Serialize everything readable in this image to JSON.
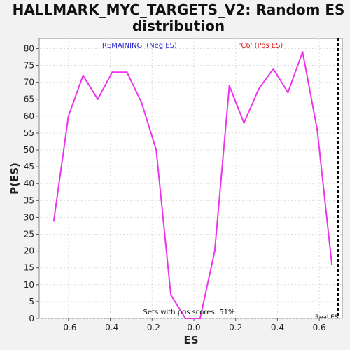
{
  "chart_data": {
    "type": "line",
    "title_line1": "HALLMARK_MYC_TARGETS_V2: Random ES",
    "title_line2": "distribution",
    "xlabel": "ES",
    "ylabel": "P(ES)",
    "xlim": [
      -0.74,
      0.71
    ],
    "ylim": [
      0,
      83
    ],
    "x_ticks": [
      -0.6,
      -0.4,
      -0.2,
      0.0,
      0.2,
      0.4,
      0.6
    ],
    "x_tick_labels": [
      "-0.6",
      "-0.4",
      "-0.2",
      "0.0",
      "0.2",
      "0.4",
      "0.6"
    ],
    "y_ticks": [
      0,
      5,
      10,
      15,
      20,
      25,
      30,
      35,
      40,
      45,
      50,
      55,
      60,
      65,
      70,
      75,
      80
    ],
    "y_tick_labels": [
      "0",
      "5",
      "10",
      "15",
      "20",
      "25",
      "30",
      "35",
      "40",
      "45",
      "50",
      "55",
      "60",
      "65",
      "70",
      "75",
      "80"
    ],
    "grid": true,
    "series": [
      {
        "color": "#ee33ee",
        "x": [
          -0.67,
          -0.6,
          -0.53,
          -0.46,
          -0.39,
          -0.32,
          -0.25,
          -0.18,
          -0.11,
          -0.04,
          0.03,
          0.1,
          0.17,
          0.24,
          0.31,
          0.38,
          0.45,
          0.52,
          0.59,
          0.66
        ],
        "y": [
          29,
          60,
          72,
          65,
          73,
          73,
          64,
          50,
          7,
          0,
          0,
          20,
          69,
          58,
          68,
          74,
          67,
          79,
          56,
          16
        ]
      }
    ],
    "annotations": {
      "neg_label": "'REMAINING' (Neg ES)",
      "pos_label": "'C6' (Pos ES)",
      "pos_scores": "Sets with pos scores: 51%",
      "real_es_label": "Real ES",
      "real_es_value": 0.69
    },
    "colors": {
      "neg": "#2222cc",
      "pos": "#dd2222",
      "line": "#ee33ee",
      "grid": "#dddddd",
      "background": "#f2f2f2",
      "plot_background": "#ffffff"
    }
  }
}
